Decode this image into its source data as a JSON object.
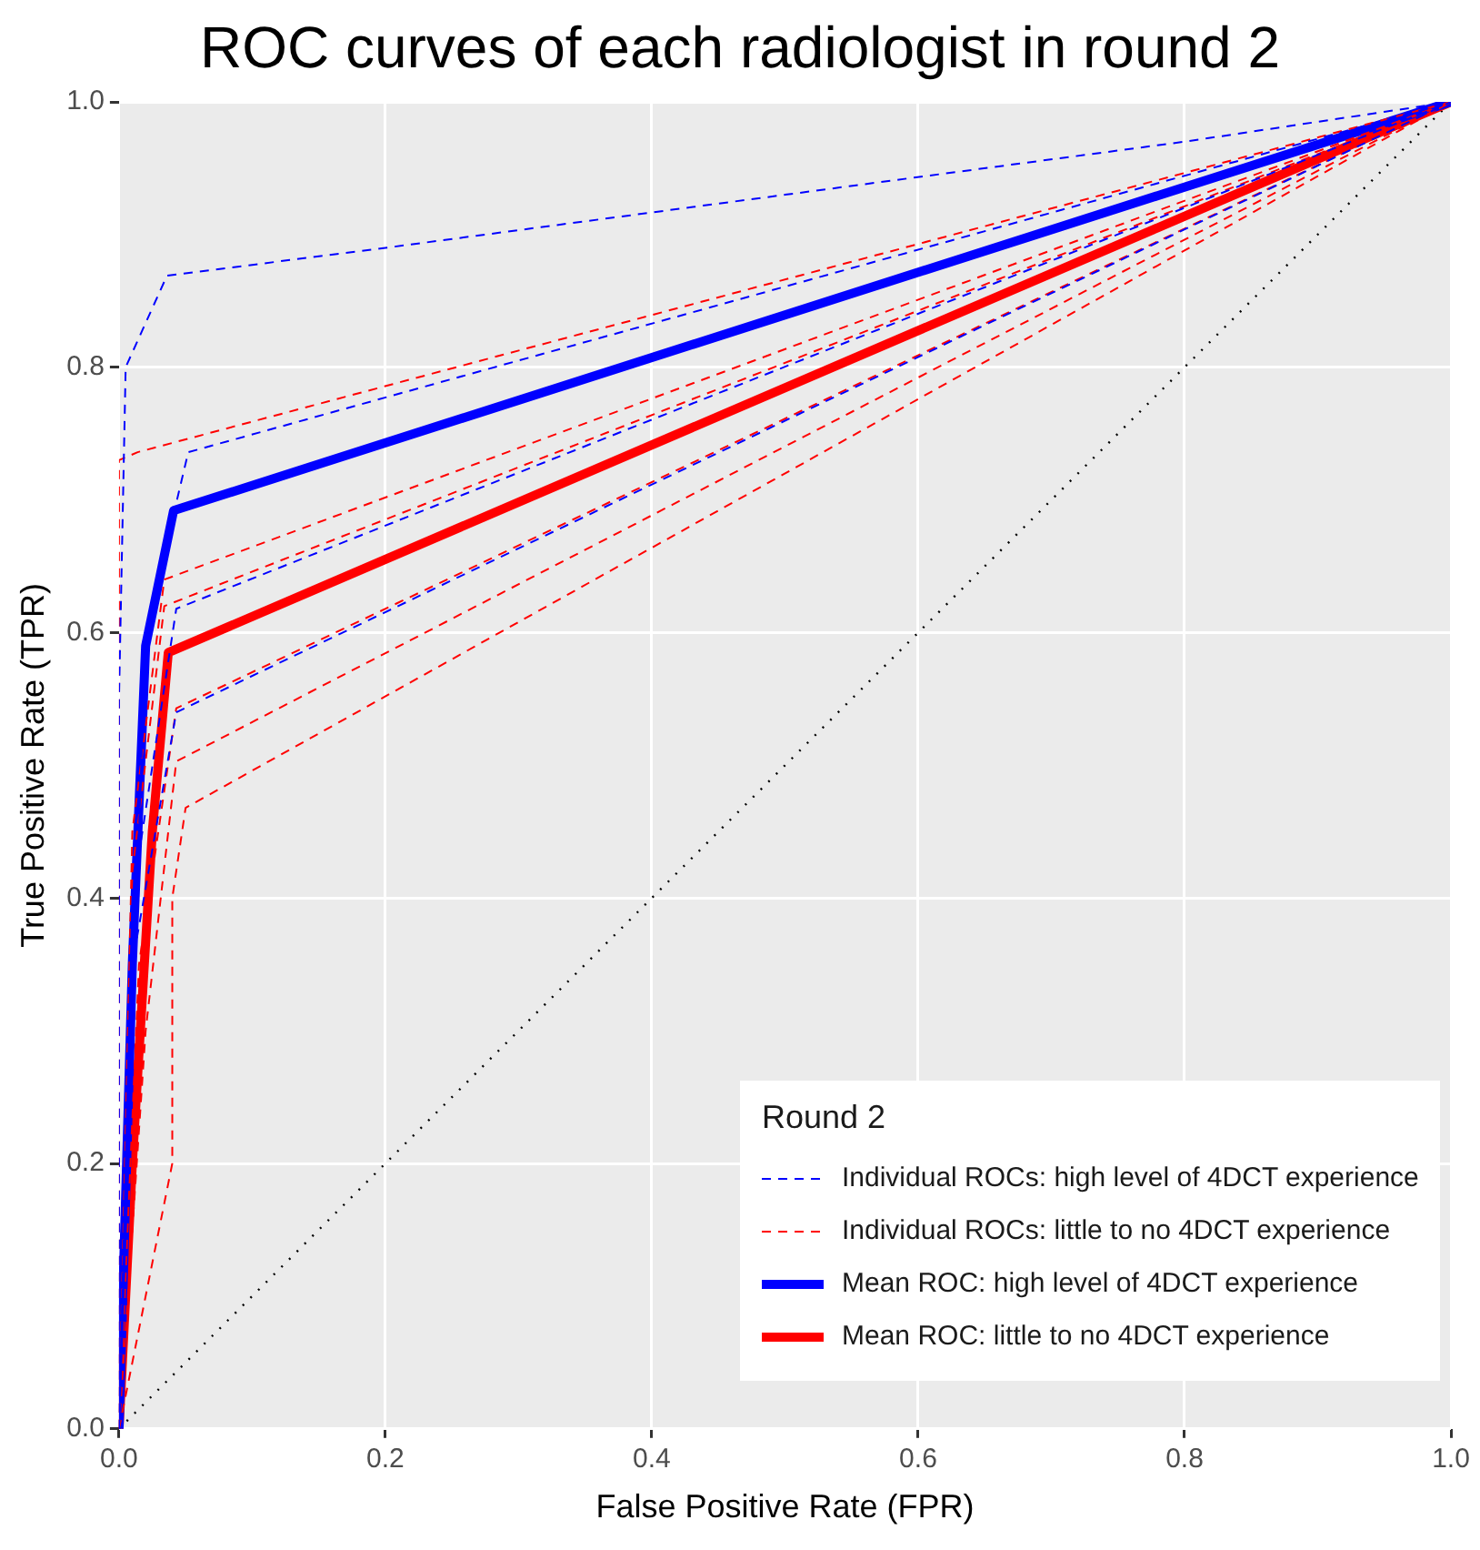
{
  "chart_data": {
    "type": "line",
    "title": "ROC curves of each radiologist in round 2",
    "xlabel": "False Positive Rate (FPR)",
    "ylabel": "True Positive Rate (TPR)",
    "legend_title": "Round 2",
    "legend": "bottom right",
    "grid": true,
    "marker": "none",
    "xlim": [
      0,
      1
    ],
    "ylim": [
      0,
      1
    ],
    "xticks": [
      {
        "value": 0,
        "label": "0.0"
      },
      {
        "value": 0.2,
        "label": "0.2"
      },
      {
        "value": 0.4,
        "label": "0.4"
      },
      {
        "value": 0.6,
        "label": "0.6"
      },
      {
        "value": 0.8,
        "label": "0.8"
      },
      {
        "value": 1,
        "label": "1.0"
      }
    ],
    "yticks": [
      {
        "value": 0,
        "label": "0.0"
      },
      {
        "value": 0.2,
        "label": "0.2"
      },
      {
        "value": 0.4,
        "label": "0.4"
      },
      {
        "value": 0.6,
        "label": "0.6"
      },
      {
        "value": 0.8,
        "label": "0.8"
      },
      {
        "value": 1,
        "label": "1.0"
      }
    ],
    "series": [
      {
        "name": "Individual ROCs: high level of 4DCT experience",
        "color": "#0000ff",
        "line_style": "dashed",
        "x": [
          0,
          0,
          0.005,
          0.036,
          0.2,
          0.5,
          0.8,
          1
        ],
        "values": [
          0,
          0.55,
          0.8,
          0.869,
          0.89,
          0.93,
          0.97,
          1
        ]
      },
      {
        "color": "#0000ff",
        "line_style": "dashed",
        "x": [
          0,
          0.02,
          0.052,
          1
        ],
        "values": [
          0,
          0.6,
          0.736,
          1
        ]
      },
      {
        "color": "#0000ff",
        "line_style": "dashed",
        "x": [
          0,
          0.01,
          0.043,
          1
        ],
        "values": [
          0,
          0.4,
          0.618,
          1
        ]
      },
      {
        "color": "#0000ff",
        "line_style": "dashed",
        "x": [
          0,
          0.01,
          0.043,
          1
        ],
        "values": [
          0,
          0.35,
          0.54,
          1
        ]
      },
      {
        "name": "Individual ROCs: little to no 4DCT experience",
        "color": "#ff0000",
        "line_style": "dashed",
        "x": [
          0,
          0,
          0.014,
          1
        ],
        "values": [
          0,
          0.73,
          0.736,
          1
        ]
      },
      {
        "color": "#ff0000",
        "line_style": "dashed",
        "x": [
          0,
          0.01,
          0.034,
          1
        ],
        "values": [
          0,
          0.45,
          0.64,
          1
        ]
      },
      {
        "color": "#ff0000",
        "line_style": "dashed",
        "x": [
          0,
          0.01,
          0.034,
          1
        ],
        "values": [
          0,
          0.42,
          0.62,
          1
        ]
      },
      {
        "color": "#ff0000",
        "line_style": "dashed",
        "x": [
          0,
          0.015,
          0.043,
          1
        ],
        "values": [
          0,
          0.35,
          0.543,
          1
        ]
      },
      {
        "color": "#ff0000",
        "line_style": "dashed",
        "x": [
          0,
          0.02,
          0.043,
          1
        ],
        "values": [
          0,
          0.3,
          0.503,
          1
        ]
      },
      {
        "color": "#ff0000",
        "line_style": "dashed",
        "x": [
          0,
          0.04,
          0.04,
          0.05,
          1
        ],
        "values": [
          0,
          0.2,
          0.4,
          0.468,
          1
        ]
      },
      {
        "name": "Mean ROC: high level of 4DCT experience",
        "color": "#0000ff",
        "line_style": "solid",
        "x": [
          0,
          0.01,
          0.02,
          0.041,
          1
        ],
        "values": [
          0,
          0.35,
          0.59,
          0.692,
          1
        ]
      },
      {
        "name": "Mean ROC: little to no 4DCT experience",
        "color": "#ff0000",
        "line_style": "solid",
        "x": [
          0,
          0.01,
          0.025,
          0.037,
          1
        ],
        "values": [
          0,
          0.2,
          0.45,
          0.585,
          1
        ]
      },
      {
        "color": "#000000",
        "line_style": "dotted",
        "x": [
          0,
          1
        ],
        "values": [
          0,
          1
        ]
      }
    ]
  }
}
